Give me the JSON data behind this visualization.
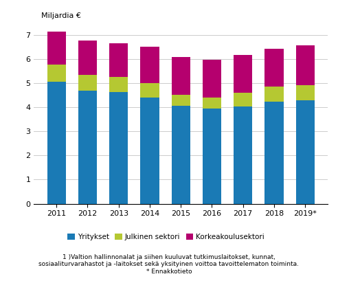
{
  "years": [
    "2011",
    "2012",
    "2013",
    "2014",
    "2015",
    "2016",
    "2017",
    "2018",
    "2019*"
  ],
  "yritykset": [
    5.04,
    4.68,
    4.62,
    4.4,
    4.06,
    3.93,
    4.04,
    4.22,
    4.28
  ],
  "julkinen": [
    0.72,
    0.65,
    0.63,
    0.6,
    0.45,
    0.47,
    0.57,
    0.63,
    0.62
  ],
  "korkeakoulu": [
    1.36,
    1.43,
    1.4,
    1.5,
    1.57,
    1.55,
    1.55,
    1.57,
    1.65
  ],
  "colors": {
    "yritykset": "#1a7ab5",
    "julkinen": "#b5c832",
    "korkeakoulu": "#b5006e"
  },
  "ylabel": "Miljardia €",
  "ylim": [
    0,
    7.5
  ],
  "yticks": [
    0,
    1,
    2,
    3,
    4,
    5,
    6,
    7
  ],
  "legend_labels": [
    "Yritykset",
    "Julkinen sektori",
    "Korkeakoulusektori"
  ],
  "footnote_line1": "1 )Valtion hallinnonalat ja siihen kuuluvat tutkimuslaitokset, kunnat,",
  "footnote_line2": "sosiaaliturvarahastot ja -laitokset sekä yksityinen voittoa tavoittelematon toiminta.",
  "footnote_line3": "* Ennakkotieto",
  "bar_width": 0.6
}
